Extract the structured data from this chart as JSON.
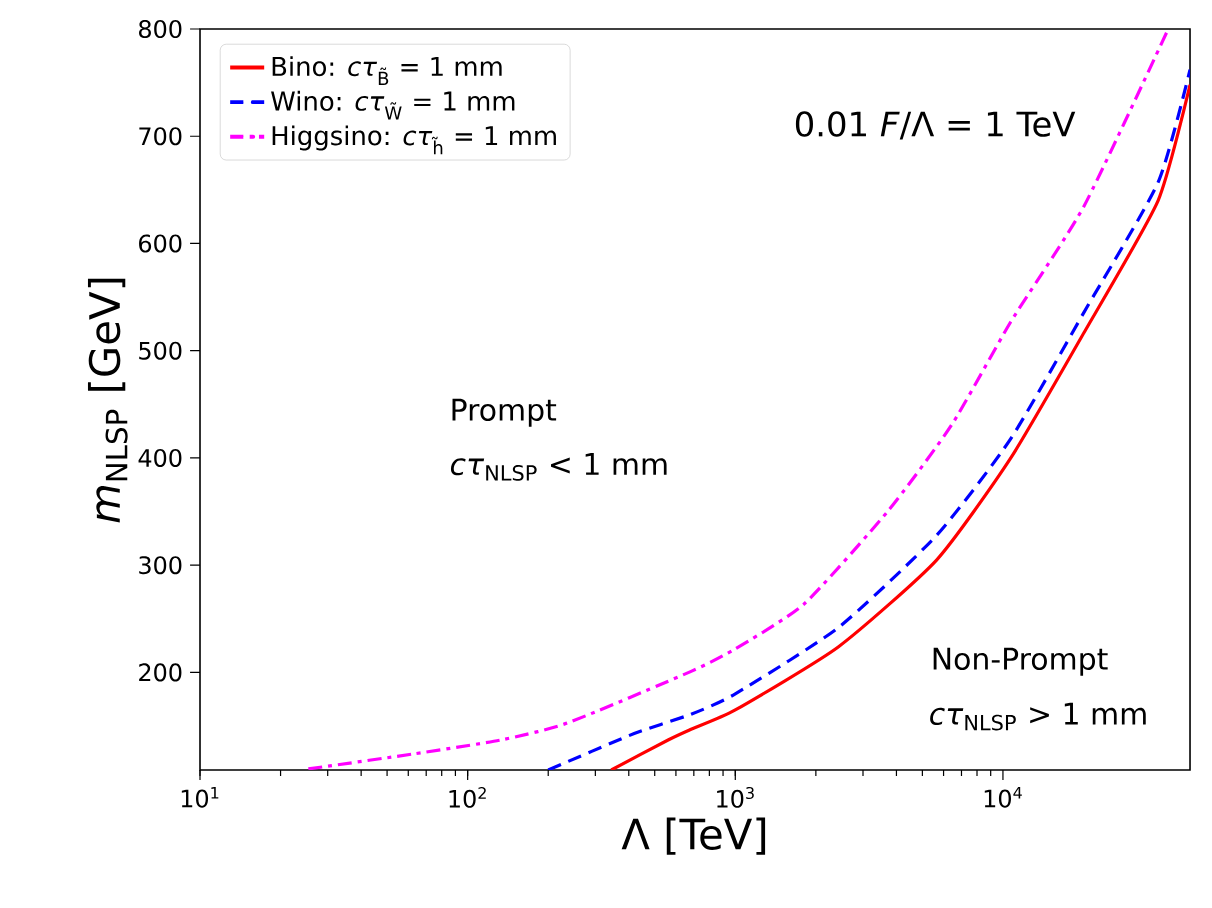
{
  "chart_data": {
    "type": "line",
    "xlabel": "Λ [TeV]",
    "ylabel": "*m*$_{NLSP}$ [GeV]",
    "log": "x",
    "xlim": [
      10,
      50000
    ],
    "ylim": [
      109,
      800
    ],
    "xticks": [
      {
        "value": 10,
        "label": "10$^{1}$"
      },
      {
        "value": 100,
        "label": "10$^{2}$"
      },
      {
        "value": 1000,
        "label": "10$^{3}$"
      },
      {
        "value": 10000,
        "label": "10$^{4}$"
      }
    ],
    "yticks": [
      200,
      300,
      400,
      500,
      600,
      700,
      800
    ],
    "legend": "top left",
    "series": [
      {
        "name": "Bino: *cτ*$_{B̃}$ = 1 mm",
        "color": "#ff0000",
        "line_style": "solid",
        "x": [
          344,
          561,
          684,
          1000,
          2432,
          5660,
          10700,
          20100,
          38000,
          50000
        ],
        "values": [
          109,
          137,
          147,
          165,
          224,
          305,
          400,
          517,
          640,
          748
        ]
      },
      {
        "name": "Wino: *cτ*$_{W̃}$ = 1 mm",
        "color": "#0000ff",
        "line_style": "dashed",
        "x": [
          200,
          419,
          684,
          1000,
          2432,
          5660,
          10700,
          20100,
          38000,
          50000
        ],
        "values": [
          109,
          143,
          161,
          180,
          242,
          328,
          418,
          536,
          657,
          762
        ]
      },
      {
        "name": "Higgsino: *cτ*$_{h̃}$ = 1 mm",
        "color": "#ff00ff",
        "line_style": "dashdot",
        "x": [
          25.4,
          62.8,
          133,
          237,
          684,
          1000,
          1811,
          3706,
          6440,
          10700,
          20100,
          41100
        ],
        "values": [
          110,
          124,
          137,
          153,
          201,
          222,
          264,
          350,
          431,
          527,
          635,
          798
        ]
      }
    ],
    "annotations": [
      "0.01 *F*/Λ = 1 TeV",
      "Prompt",
      "*cτ*$_{NLSP}$ < 1 mm",
      "Non-Prompt",
      "*cτ*$_{NLSP}$ > 1 mm"
    ]
  }
}
